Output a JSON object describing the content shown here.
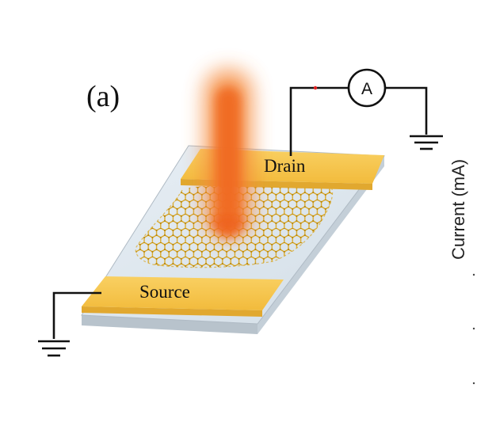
{
  "figure": {
    "panel_label": "(a)",
    "drain_label": "Drain",
    "source_label": "Source",
    "ammeter_label": "A",
    "y_axis_label": "Current (mA)"
  },
  "colors": {
    "electrode_top": "#F6C44A",
    "electrode_front": "#E1A82F",
    "substrate_top": "#DDE7EF",
    "substrate_side": "#C4CFD8",
    "substrate_front": "#B8C3CC",
    "network": "#D9A520",
    "beam": "#F06A22",
    "wire": "#111111",
    "wire_mark": "#E02020"
  },
  "icons": {
    "ground": "ground-icon",
    "ammeter": "ammeter-icon",
    "laser": "laser-beam"
  }
}
